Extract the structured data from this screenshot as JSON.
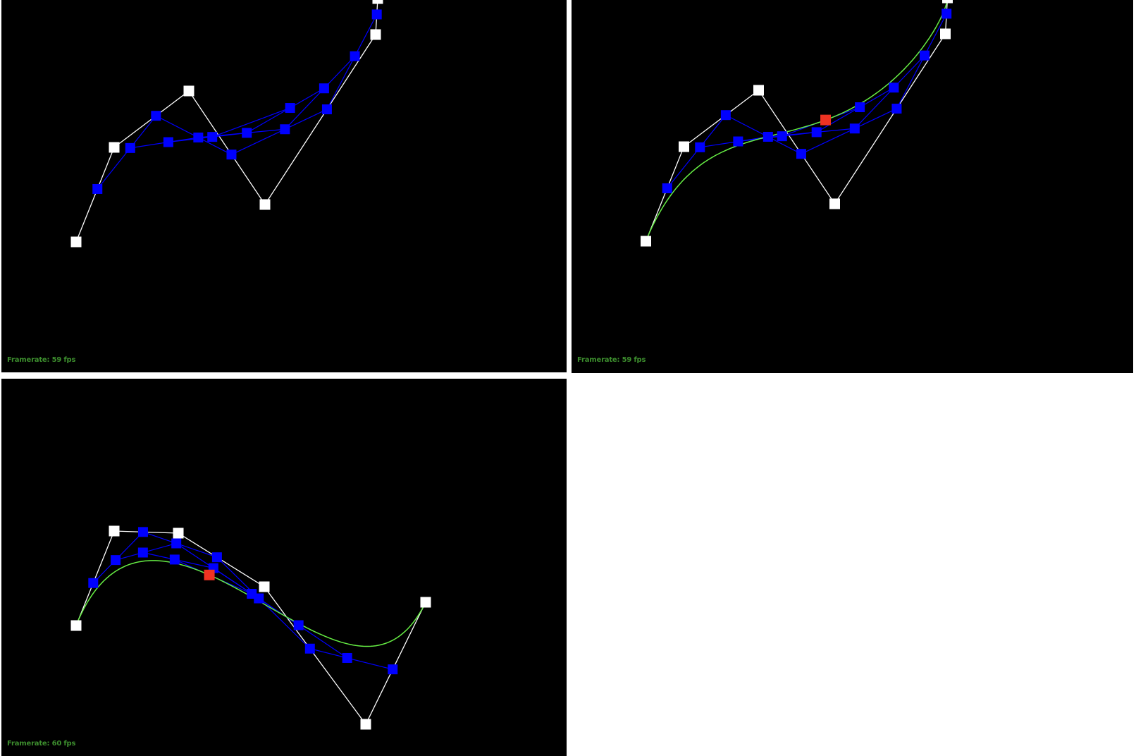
{
  "viewports": [
    {
      "framerate_text": "Framerate: 59 fps",
      "show_curve": false,
      "colors": {
        "background": "#000000",
        "control": "#ffffff",
        "intermediate": "#0000ff",
        "curve": "#66ee44",
        "current": "#ee3322",
        "framerate": "#3d8f2e"
      }
    },
    {
      "framerate_text": "Framerate: 59 fps",
      "show_curve": true,
      "colors": {
        "background": "#000000",
        "control": "#ffffff",
        "intermediate": "#0000ff",
        "curve": "#66ee44",
        "current": "#ee3322",
        "framerate": "#3d8f2e"
      }
    },
    {
      "framerate_text": "Framerate: 60 fps",
      "show_curve": true,
      "colors": {
        "background": "#000000",
        "control": "#ffffff",
        "intermediate": "#0000ff",
        "curve": "#66ee44",
        "current": "#ee3322",
        "framerate": "#3d8f2e"
      }
    }
  ]
}
